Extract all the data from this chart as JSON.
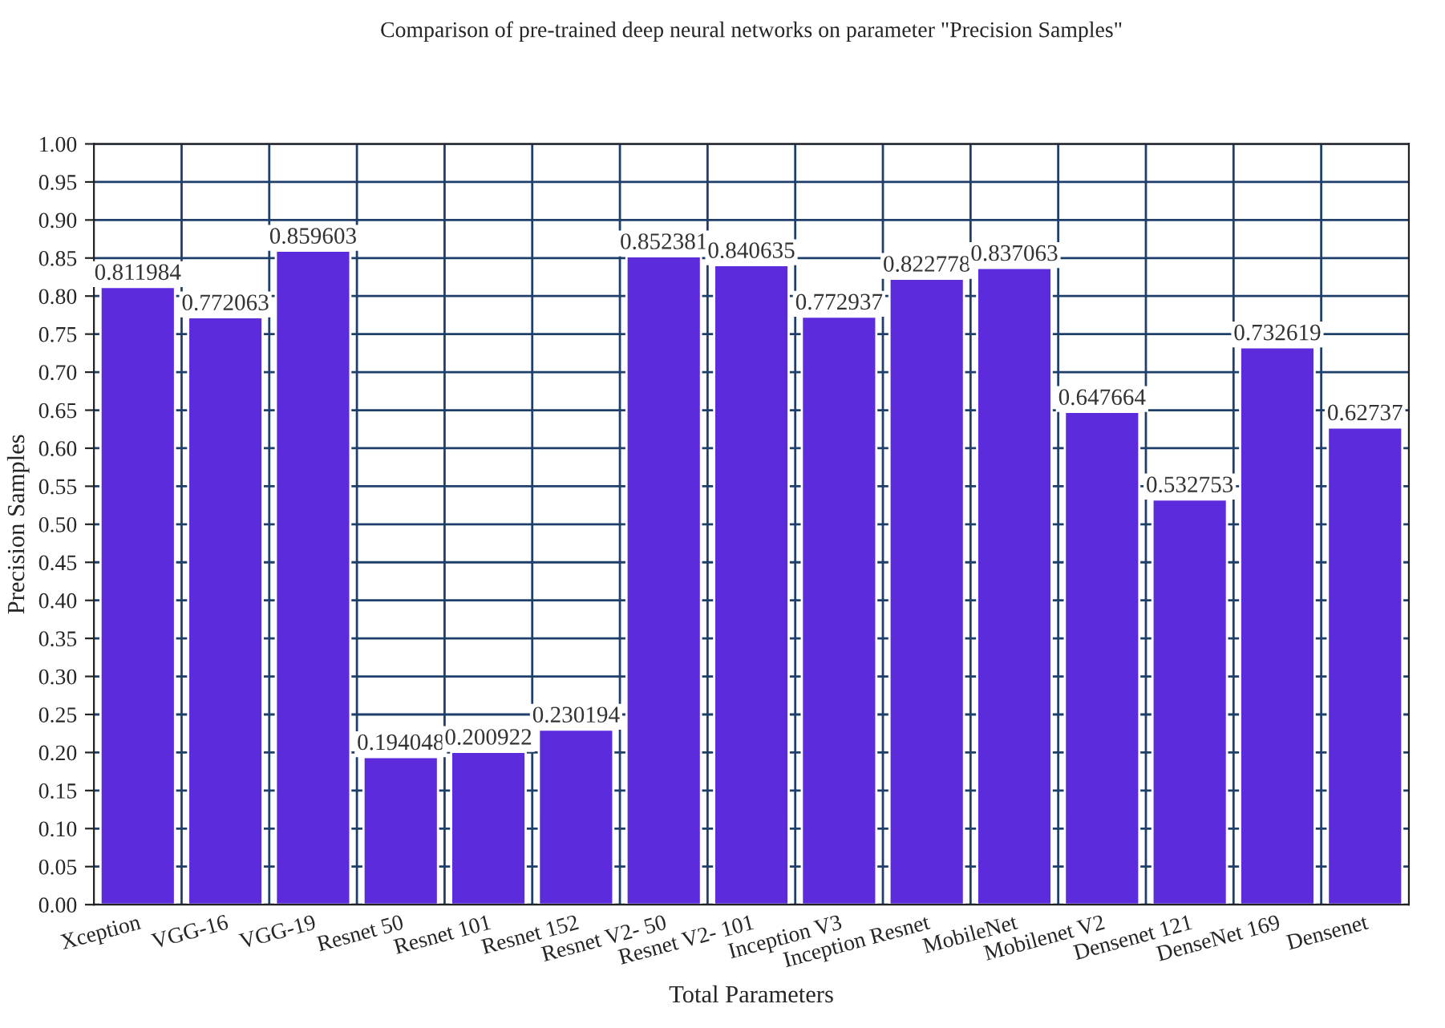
{
  "chart_data": {
    "type": "bar",
    "title": "Comparison of pre-trained deep neural networks on parameter \"Precision Samples\"",
    "xlabel": "Total Parameters",
    "ylabel": "Precision Samples",
    "categories": [
      "Xception",
      "VGG-16",
      "VGG-19",
      "Resnet 50",
      "Resnet 101",
      "Resnet 152",
      "Resnet V2- 50",
      "Resnet V2- 101",
      "Inception V3",
      "Inception Resnet",
      "MobileNet",
      "Mobilenet V2",
      "Densenet 121",
      "DenseNet 169",
      "Densenet"
    ],
    "values": [
      0.811984,
      0.772063,
      0.859603,
      0.194048,
      0.200922,
      0.230194,
      0.852381,
      0.840635,
      0.772937,
      0.822778,
      0.837063,
      0.647664,
      0.532753,
      0.732619,
      0.62737
    ],
    "color": "#5b2bdc",
    "data_labels": true,
    "grid": true,
    "ylim": [
      0,
      1
    ],
    "yticks": [
      {
        "value": 0,
        "label": "0.00"
      },
      {
        "value": 0.05,
        "label": "0.05"
      },
      {
        "value": 0.1,
        "label": "0.10"
      },
      {
        "value": 0.15,
        "label": "0.15"
      },
      {
        "value": 0.2,
        "label": "0.20"
      },
      {
        "value": 0.25,
        "label": "0.25"
      },
      {
        "value": 0.3,
        "label": "0.30"
      },
      {
        "value": 0.35,
        "label": "0.35"
      },
      {
        "value": 0.4,
        "label": "0.40"
      },
      {
        "value": 0.45,
        "label": "0.45"
      },
      {
        "value": 0.5,
        "label": "0.50"
      },
      {
        "value": 0.55,
        "label": "0.55"
      },
      {
        "value": 0.6,
        "label": "0.60"
      },
      {
        "value": 0.65,
        "label": "0.65"
      },
      {
        "value": 0.7,
        "label": "0.70"
      },
      {
        "value": 0.75,
        "label": "0.75"
      },
      {
        "value": 0.8,
        "label": "0.80"
      },
      {
        "value": 0.85,
        "label": "0.85"
      },
      {
        "value": 0.9,
        "label": "0.90"
      },
      {
        "value": 0.95,
        "label": "0.95"
      },
      {
        "value": 1,
        "label": "1.00"
      }
    ]
  }
}
